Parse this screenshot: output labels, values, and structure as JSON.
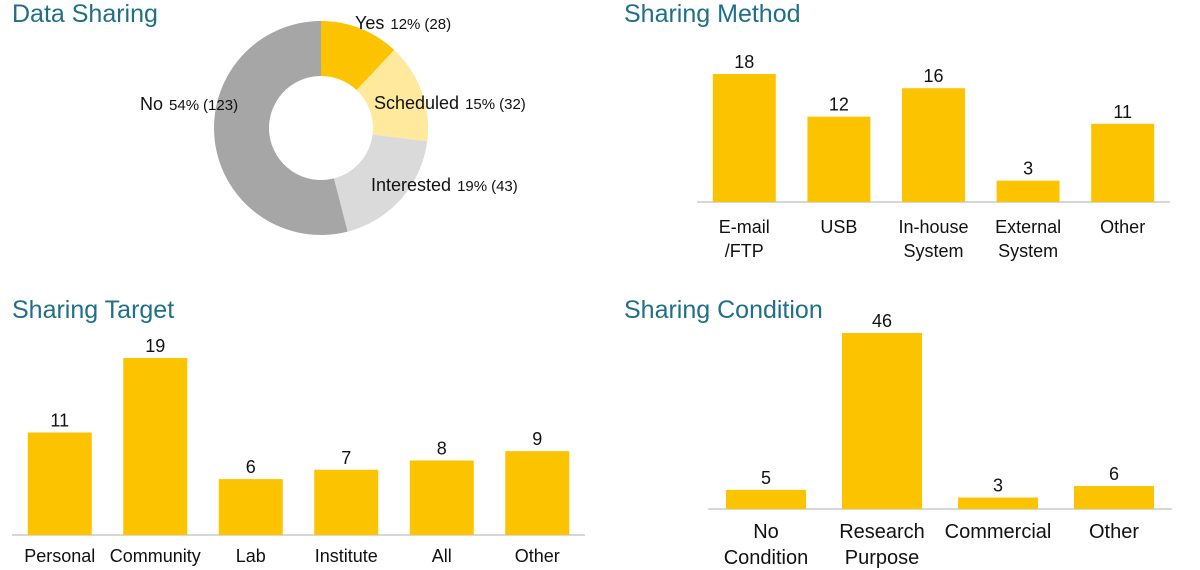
{
  "colors": {
    "title": "#1f6f86",
    "bar": "#fcc400",
    "pie": [
      "#fcc400",
      "#ffe99c",
      "#dadada",
      "#a6a6a6"
    ],
    "baseline": "#bfbfbf",
    "text": "#111111"
  },
  "chart_data": [
    {
      "type": "pie",
      "title": "Data Sharing",
      "donut": true,
      "slices": [
        {
          "name": "Yes",
          "percent": 12,
          "count": 28,
          "pct_label": "12%",
          "count_label": "(28)"
        },
        {
          "name": "Scheduled",
          "percent": 15,
          "count": 32,
          "pct_label": "15%",
          "count_label": "(32)"
        },
        {
          "name": "Interested",
          "percent": 19,
          "count": 43,
          "pct_label": "19%",
          "count_label": "(43)"
        },
        {
          "name": "No",
          "percent": 54,
          "count": 123,
          "pct_label": "54%",
          "count_label": "(123)"
        }
      ]
    },
    {
      "type": "bar",
      "title": "Sharing Method",
      "categories": [
        [
          "E-mail",
          "/FTP"
        ],
        [
          "USB"
        ],
        [
          "In-house",
          "System"
        ],
        [
          "External",
          "System"
        ],
        [
          "Other"
        ]
      ],
      "values": [
        18,
        12,
        16,
        3,
        11
      ],
      "ylim": [
        0,
        18
      ]
    },
    {
      "type": "bar",
      "title": "Sharing Target",
      "categories": [
        [
          "Personal"
        ],
        [
          "Community"
        ],
        [
          "Lab"
        ],
        [
          "Institute"
        ],
        [
          "All"
        ],
        [
          "Other"
        ]
      ],
      "values": [
        11,
        19,
        6,
        7,
        8,
        9
      ],
      "ylim": [
        0,
        19
      ]
    },
    {
      "type": "bar",
      "title": "Sharing Condition",
      "categories": [
        [
          "No",
          "Condition"
        ],
        [
          "Research",
          "Purpose"
        ],
        [
          "Commercial"
        ],
        [
          "Other"
        ]
      ],
      "values": [
        5,
        46,
        3,
        6
      ],
      "ylim": [
        0,
        46
      ]
    }
  ]
}
